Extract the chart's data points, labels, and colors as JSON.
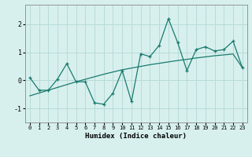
{
  "x": [
    0,
    1,
    2,
    3,
    4,
    5,
    6,
    7,
    8,
    9,
    10,
    11,
    12,
    13,
    14,
    15,
    16,
    17,
    18,
    19,
    20,
    21,
    22,
    23
  ],
  "y_line": [
    0.1,
    -0.35,
    -0.35,
    0.05,
    0.6,
    -0.05,
    -0.05,
    -0.8,
    -0.85,
    -0.45,
    0.35,
    -0.75,
    0.95,
    0.85,
    1.25,
    2.2,
    1.35,
    0.35,
    1.1,
    1.2,
    1.05,
    1.1,
    1.4,
    0.45
  ],
  "y_trend": [
    -0.55,
    -0.45,
    -0.35,
    -0.25,
    -0.15,
    -0.05,
    0.04,
    0.13,
    0.22,
    0.3,
    0.38,
    0.44,
    0.5,
    0.56,
    0.61,
    0.66,
    0.71,
    0.75,
    0.8,
    0.84,
    0.88,
    0.91,
    0.94,
    0.45
  ],
  "color_line": "#1a7a6e",
  "color_trend": "#1a7a6e",
  "background_color": "#d7f0ee",
  "grid_color": "#b8dbd8",
  "xlabel": "Humidex (Indice chaleur)",
  "xlim": [
    -0.5,
    23.5
  ],
  "ylim": [
    -1.5,
    2.7
  ],
  "yticks": [
    -1,
    0,
    1,
    2
  ],
  "xticks": [
    0,
    1,
    2,
    3,
    4,
    5,
    6,
    7,
    8,
    9,
    10,
    11,
    12,
    13,
    14,
    15,
    16,
    17,
    18,
    19,
    20,
    21,
    22,
    23
  ]
}
